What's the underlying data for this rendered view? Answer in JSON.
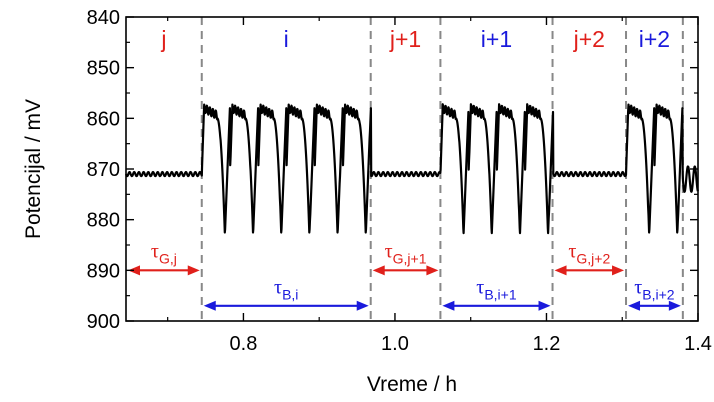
{
  "colors": {
    "red": "#e0201b",
    "blue": "#1a1adc",
    "trace": "#000000",
    "divider": "#888888"
  },
  "chart_data": {
    "type": "line",
    "xlabel": "Vreme / h",
    "ylabel": "Potencijal / mV",
    "xlim": [
      0.645,
      1.4
    ],
    "ylim": [
      840,
      900
    ],
    "y_inverted": true,
    "x_ticks": [
      0.8,
      1.0,
      1.2,
      1.4
    ],
    "x_tick_labels": [
      "0.8",
      "1.0",
      "1.2",
      "1.4"
    ],
    "y_ticks": [
      840,
      850,
      860,
      870,
      880,
      890,
      900
    ],
    "y_tick_labels": [
      "840",
      "850",
      "860",
      "870",
      "880",
      "890",
      "900"
    ],
    "grid": false,
    "dividers": [
      0.745,
      0.968,
      1.06,
      1.208,
      1.305,
      1.38
    ],
    "segments": [
      {
        "label": "j",
        "x0": 0.645,
        "x1": 0.745,
        "color": "red",
        "type": "G",
        "tau": "τ",
        "tau_sub": "G,j"
      },
      {
        "label": "i",
        "x0": 0.745,
        "x1": 0.968,
        "color": "blue",
        "type": "B",
        "tau": "τ",
        "tau_sub": "B,i"
      },
      {
        "label": "j+1",
        "x0": 0.968,
        "x1": 1.06,
        "color": "red",
        "type": "G",
        "tau": "τ",
        "tau_sub": "G,j+1"
      },
      {
        "label": "i+1",
        "x0": 1.06,
        "x1": 1.208,
        "color": "blue",
        "type": "B",
        "tau": "τ",
        "tau_sub": "B,i+1"
      },
      {
        "label": "j+2",
        "x0": 1.208,
        "x1": 1.305,
        "color": "red",
        "type": "G",
        "tau": "τ",
        "tau_sub": "G,j+2"
      },
      {
        "label": "i+2",
        "x0": 1.305,
        "x1": 1.38,
        "color": "blue",
        "type": "B",
        "tau": "τ",
        "tau_sub": "B,i+2"
      }
    ],
    "series": [
      {
        "flat_level": 871,
        "flat_ripple": 0.4,
        "osc_top": 858,
        "osc_bottom": 883,
        "cycles": [
          {
            "start": 0.745,
            "period": 0.0372,
            "count": 6
          },
          {
            "start": 1.06,
            "period": 0.0372,
            "count": 4
          },
          {
            "start": 1.305,
            "period": 0.0372,
            "count": 2
          }
        ],
        "tail_after": 1.38,
        "tail_level": 872
      }
    ]
  }
}
